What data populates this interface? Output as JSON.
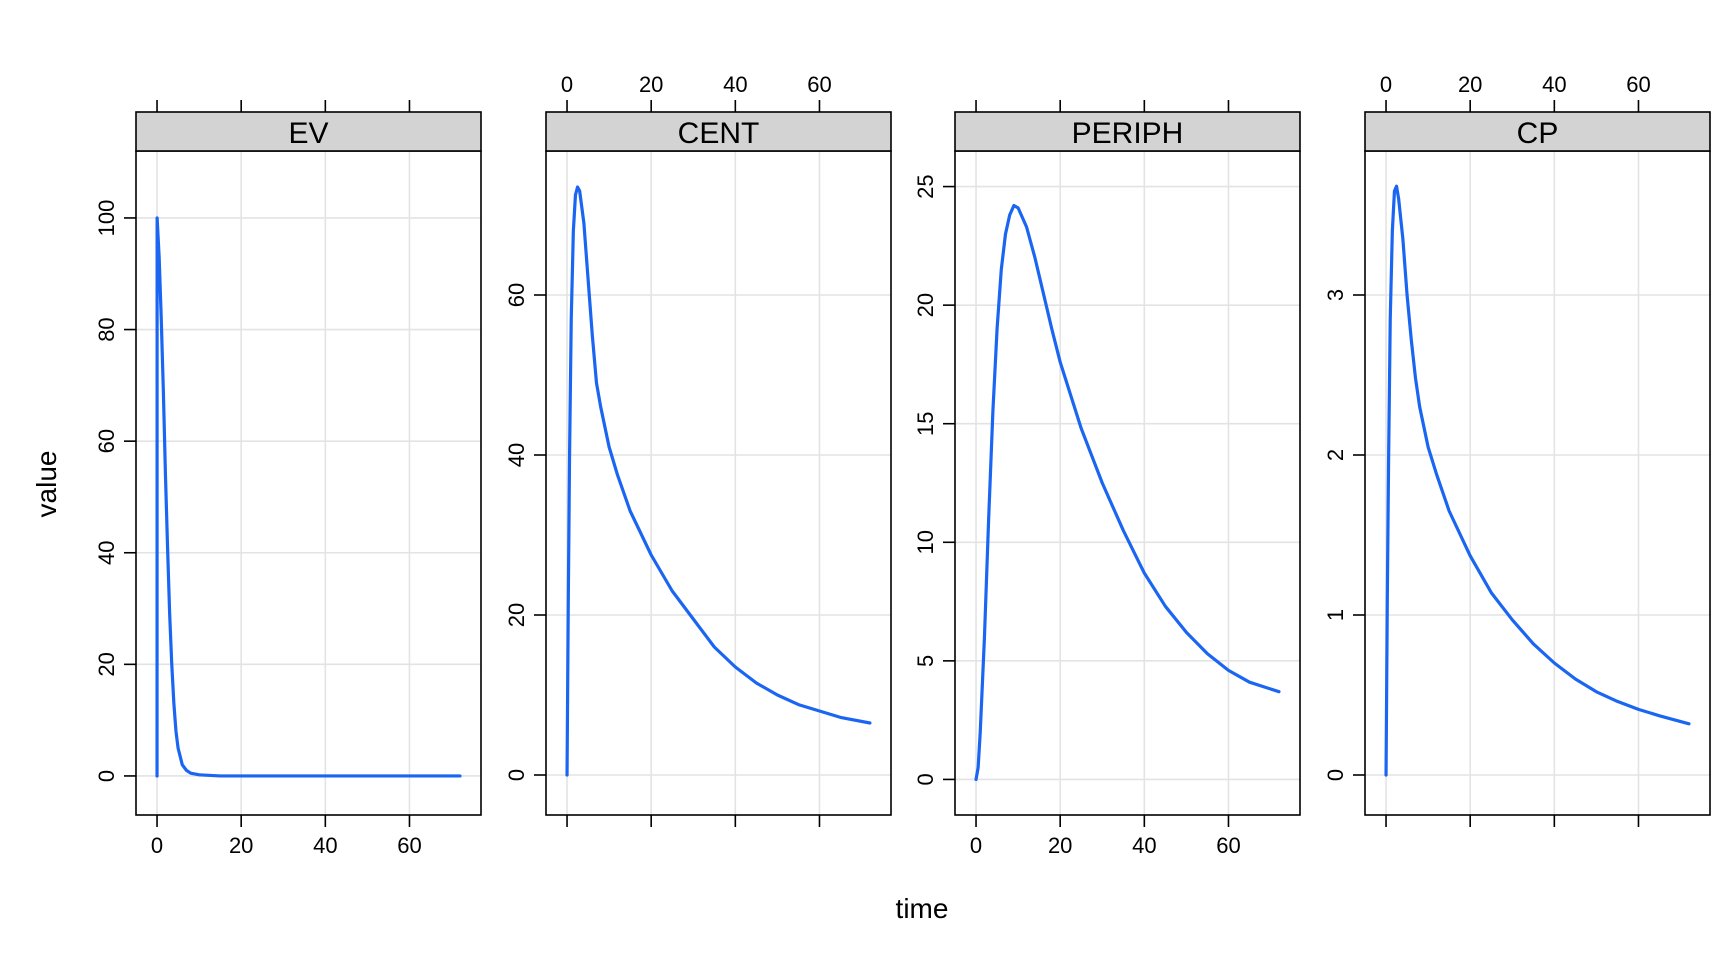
{
  "chart_data": {
    "type": "line",
    "layout": "4 panels in one row, shared x axis",
    "xlabel": "time",
    "ylabel": "value",
    "xlim": [
      -5,
      77
    ],
    "x_ticks": [
      0,
      20,
      40,
      60
    ],
    "grid": true,
    "series_color": "#1a66f2",
    "panels": [
      {
        "name": "EV",
        "ylim": [
          -7,
          112
        ],
        "y_ticks": [
          0,
          20,
          40,
          60,
          80,
          100
        ],
        "x_tick_labels_side": "bottom",
        "points": [
          [
            0,
            0
          ],
          [
            0.02,
            100
          ],
          [
            0.5,
            93
          ],
          [
            1,
            82
          ],
          [
            1.5,
            69
          ],
          [
            2,
            54
          ],
          [
            2.5,
            41
          ],
          [
            3,
            29
          ],
          [
            3.5,
            20
          ],
          [
            4,
            13
          ],
          [
            4.5,
            8
          ],
          [
            5,
            5
          ],
          [
            6,
            2
          ],
          [
            7,
            1
          ],
          [
            8,
            0.5
          ],
          [
            10,
            0.2
          ],
          [
            15,
            0
          ],
          [
            20,
            0
          ],
          [
            40,
            0
          ],
          [
            60,
            0
          ],
          [
            72,
            0
          ]
        ]
      },
      {
        "name": "CENT",
        "ylim": [
          -5,
          78
        ],
        "y_ticks": [
          0,
          20,
          40,
          60
        ],
        "x_tick_labels_side": "top",
        "points": [
          [
            0,
            0
          ],
          [
            0.3,
            22
          ],
          [
            0.6,
            40
          ],
          [
            1,
            57
          ],
          [
            1.5,
            68
          ],
          [
            2,
            72.5
          ],
          [
            2.5,
            73.5
          ],
          [
            3,
            73
          ],
          [
            4,
            69
          ],
          [
            5,
            62
          ],
          [
            6,
            55
          ],
          [
            7,
            49
          ],
          [
            8,
            46
          ],
          [
            10,
            41
          ],
          [
            12,
            37.5
          ],
          [
            15,
            33
          ],
          [
            20,
            27.5
          ],
          [
            25,
            23
          ],
          [
            30,
            19.5
          ],
          [
            35,
            16
          ],
          [
            40,
            13.5
          ],
          [
            45,
            11.5
          ],
          [
            50,
            10
          ],
          [
            55,
            8.8
          ],
          [
            60,
            8
          ],
          [
            65,
            7.2
          ],
          [
            72,
            6.5
          ]
        ]
      },
      {
        "name": "PERIPH",
        "ylim": [
          -1.5,
          26.5
        ],
        "y_ticks": [
          0,
          5,
          10,
          15,
          20,
          25
        ],
        "x_tick_labels_side": "bottom",
        "points": [
          [
            0,
            0
          ],
          [
            0.5,
            0.5
          ],
          [
            1,
            2
          ],
          [
            2,
            6
          ],
          [
            3,
            11
          ],
          [
            4,
            15.5
          ],
          [
            5,
            19
          ],
          [
            6,
            21.5
          ],
          [
            7,
            23
          ],
          [
            8,
            23.8
          ],
          [
            9,
            24.2
          ],
          [
            10,
            24.1
          ],
          [
            12,
            23.3
          ],
          [
            14,
            22
          ],
          [
            16,
            20.5
          ],
          [
            18,
            19
          ],
          [
            20,
            17.6
          ],
          [
            25,
            14.8
          ],
          [
            30,
            12.5
          ],
          [
            35,
            10.5
          ],
          [
            40,
            8.7
          ],
          [
            45,
            7.3
          ],
          [
            50,
            6.2
          ],
          [
            55,
            5.3
          ],
          [
            60,
            4.6
          ],
          [
            65,
            4.1
          ],
          [
            72,
            3.7
          ]
        ]
      },
      {
        "name": "CP",
        "ylim": [
          -0.25,
          3.9
        ],
        "y_ticks": [
          0,
          1,
          2,
          3
        ],
        "x_tick_labels_side": "top",
        "points": [
          [
            0,
            0
          ],
          [
            0.3,
            1.1
          ],
          [
            0.6,
            1.95
          ],
          [
            1,
            2.85
          ],
          [
            1.5,
            3.4
          ],
          [
            2,
            3.65
          ],
          [
            2.5,
            3.68
          ],
          [
            3,
            3.6
          ],
          [
            4,
            3.35
          ],
          [
            5,
            3.0
          ],
          [
            6,
            2.72
          ],
          [
            7,
            2.48
          ],
          [
            8,
            2.3
          ],
          [
            10,
            2.05
          ],
          [
            12,
            1.88
          ],
          [
            15,
            1.65
          ],
          [
            20,
            1.37
          ],
          [
            25,
            1.14
          ],
          [
            30,
            0.97
          ],
          [
            35,
            0.82
          ],
          [
            40,
            0.7
          ],
          [
            45,
            0.6
          ],
          [
            50,
            0.52
          ],
          [
            55,
            0.46
          ],
          [
            60,
            0.41
          ],
          [
            65,
            0.37
          ],
          [
            72,
            0.32
          ]
        ]
      }
    ]
  }
}
